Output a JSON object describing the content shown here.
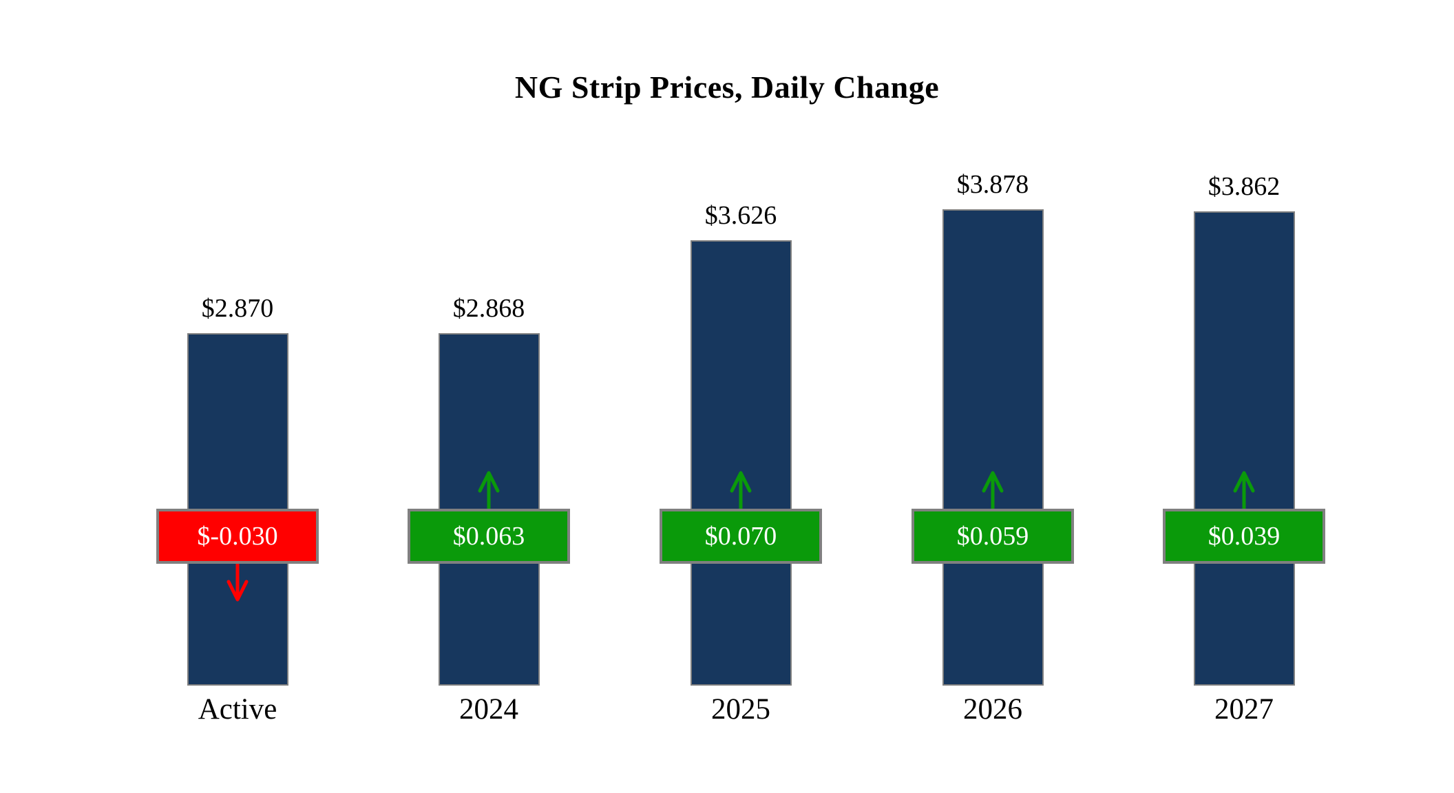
{
  "title": "NG Strip Prices, Daily Change",
  "chart_data": {
    "type": "bar",
    "title": "NG Strip Prices, Daily Change",
    "categories": [
      "Active",
      "2024",
      "2025",
      "2026",
      "2027"
    ],
    "series": [
      {
        "name": "Strip Price",
        "values": [
          2.87,
          2.868,
          3.626,
          3.878,
          3.862
        ]
      },
      {
        "name": "Daily Change",
        "values": [
          -0.03,
          0.063,
          0.07,
          0.059,
          0.039
        ]
      }
    ],
    "price_labels": [
      "$2.870",
      "$2.868",
      "$3.626",
      "$3.878",
      "$3.862"
    ],
    "change_labels": [
      "$-0.030",
      "$0.063",
      "$0.070",
      "$0.059",
      "$0.039"
    ],
    "ylim": [
      0,
      4.2
    ],
    "grid": false,
    "legend": "none",
    "colors": {
      "bar": "#17375E",
      "positive": "#0A9A0A",
      "negative": "#FF0000",
      "badge_border": "#808080",
      "text": "#000000",
      "badge_text": "#FFFFFF",
      "background": "#FFFFFF"
    }
  }
}
